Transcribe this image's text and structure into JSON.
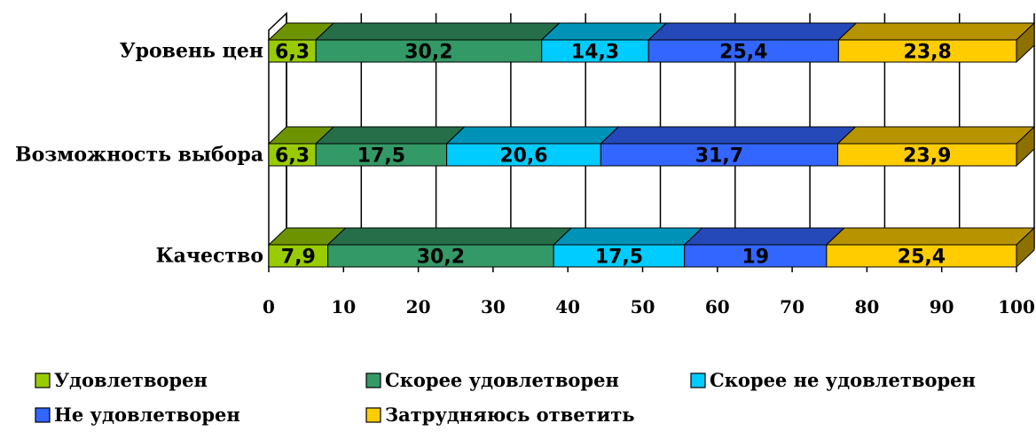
{
  "chart_data": {
    "type": "bar",
    "orientation": "horizontal",
    "stacked": true,
    "three_d": true,
    "categories": [
      "Уровень цен",
      "Возможность выбора",
      "Качество"
    ],
    "series": [
      {
        "name": "Удовлетворен",
        "color": "#99CC00",
        "values": [
          6.3,
          6.3,
          7.9
        ],
        "labels": [
          "6,3",
          "6,3",
          "7,9"
        ]
      },
      {
        "name": "Скорее удовлетворен",
        "color": "#339966",
        "values": [
          30.2,
          17.5,
          30.2
        ],
        "labels": [
          "30,2",
          "17,5",
          "30,2"
        ]
      },
      {
        "name": "Скорее не удовлетворен",
        "color": "#00CCFF",
        "values": [
          14.3,
          20.6,
          17.5
        ],
        "labels": [
          "14,3",
          "20,6",
          "17,5"
        ]
      },
      {
        "name": "Не удовлетворен",
        "color": "#3366FF",
        "values": [
          25.4,
          31.7,
          19
        ],
        "labels": [
          "25,4",
          "31,7",
          "19"
        ]
      },
      {
        "name": "Затрудняюсь ответить",
        "color": "#FFCC00",
        "values": [
          23.8,
          23.9,
          25.4
        ],
        "labels": [
          "23,8",
          "23,9",
          "25,4"
        ]
      }
    ],
    "xlim": [
      0,
      100
    ],
    "x_ticks": [
      "0",
      "10",
      "20",
      "30",
      "40",
      "50",
      "60",
      "70",
      "80",
      "90",
      "100"
    ],
    "grid": true,
    "legend_position": "bottom"
  }
}
